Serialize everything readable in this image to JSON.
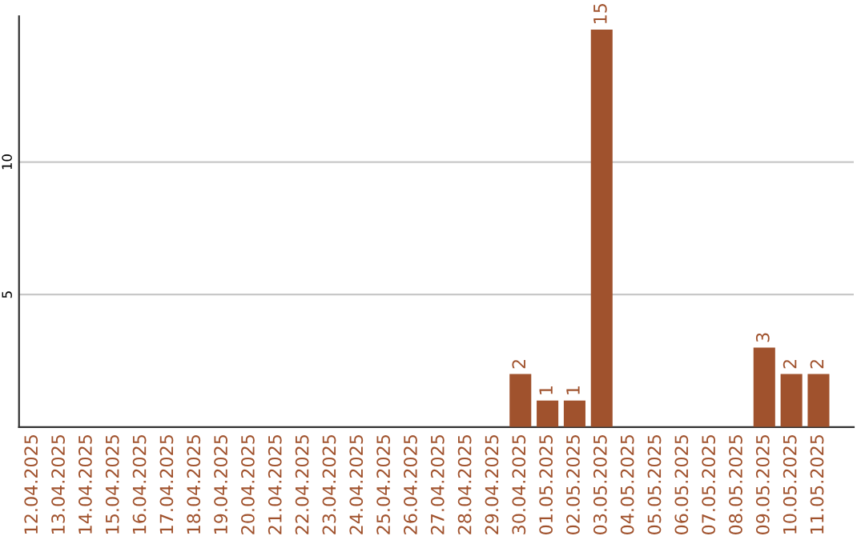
{
  "chart_data": {
    "type": "bar",
    "categories": [
      "12.04.2025",
      "13.04.2025",
      "14.04.2025",
      "15.04.2025",
      "16.04.2025",
      "17.04.2025",
      "18.04.2025",
      "19.04.2025",
      "20.04.2025",
      "21.04.2025",
      "22.04.2025",
      "23.04.2025",
      "24.04.2025",
      "25.04.2025",
      "26.04.2025",
      "27.04.2025",
      "28.04.2025",
      "29.04.2025",
      "30.04.2025",
      "01.05.2025",
      "02.05.2025",
      "03.05.2025",
      "04.05.2025",
      "05.05.2025",
      "06.05.2025",
      "07.05.2025",
      "08.05.2025",
      "09.05.2025",
      "10.05.2025",
      "11.05.2025"
    ],
    "values": [
      0,
      0,
      0,
      0,
      0,
      0,
      0,
      0,
      0,
      0,
      0,
      0,
      0,
      0,
      0,
      0,
      0,
      0,
      2,
      1,
      1,
      15,
      0,
      0,
      0,
      0,
      0,
      3,
      2,
      2
    ],
    "value_labels": [
      null,
      null,
      null,
      null,
      null,
      null,
      null,
      null,
      null,
      null,
      null,
      null,
      null,
      null,
      null,
      null,
      null,
      null,
      "2",
      "1",
      "1",
      "15",
      null,
      null,
      null,
      null,
      null,
      "3",
      "2",
      "2"
    ],
    "color": "#a0522d",
    "ylim": [
      0,
      15.5
    ],
    "yticks": [
      5,
      10
    ],
    "grid": "y",
    "legend": false
  }
}
